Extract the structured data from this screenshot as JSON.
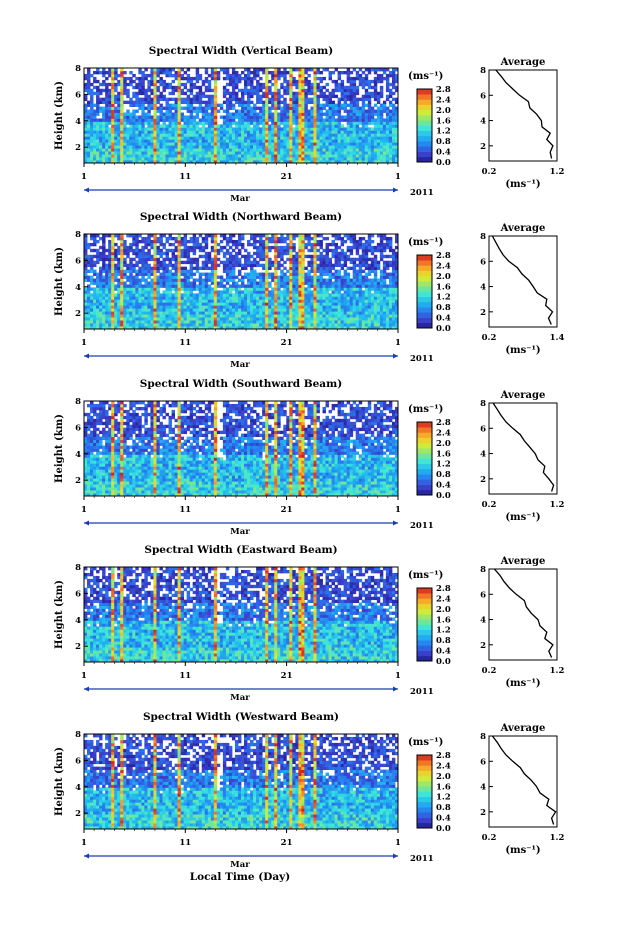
{
  "figure": {
    "time_axis_label": "Local Time (Day)",
    "month_label": "Mar",
    "year_label": "2011",
    "colorbar_unit": "(ms⁻¹)",
    "profile_title": "Average",
    "profile_unit": "(ms⁻¹)"
  },
  "chart_data": [
    {
      "type": "heatmap",
      "title": "Spectral Width (Vertical Beam)",
      "ylabel": "Height (km)",
      "xlabel": "",
      "x_ticks": [
        "1",
        "11",
        "21",
        "1"
      ],
      "y_ticks": [
        "2",
        "4",
        "6",
        "8"
      ],
      "xlim": [
        1,
        32
      ],
      "ylim": [
        0.8,
        8.0
      ],
      "colorbar": {
        "range": [
          0.0,
          2.8
        ],
        "ticks": [
          "0.0",
          "0.4",
          "0.8",
          "1.2",
          "1.6",
          "2.0",
          "2.4",
          "2.8"
        ]
      },
      "profile": {
        "title": "Average",
        "x_ticks": [
          "0.2",
          "1.2"
        ],
        "xlim": [
          0.2,
          1.2
        ],
        "y_ticks": [
          "2",
          "4",
          "6",
          "8"
        ],
        "ylim": [
          0.8,
          8.0
        ],
        "points": [
          [
            1.12,
            1.0
          ],
          [
            1.1,
            1.5
          ],
          [
            1.14,
            2.0
          ],
          [
            1.05,
            2.5
          ],
          [
            1.1,
            3.0
          ],
          [
            0.98,
            3.5
          ],
          [
            0.97,
            4.0
          ],
          [
            0.9,
            4.5
          ],
          [
            0.8,
            5.0
          ],
          [
            0.78,
            5.5
          ],
          [
            0.65,
            6.0
          ],
          [
            0.55,
            6.5
          ],
          [
            0.45,
            7.0
          ],
          [
            0.38,
            7.5
          ],
          [
            0.3,
            8.0
          ]
        ]
      }
    },
    {
      "type": "heatmap",
      "title": "Spectral Width (Northward Beam)",
      "ylabel": "Height (km)",
      "xlabel": "",
      "x_ticks": [
        "1",
        "11",
        "21",
        "1"
      ],
      "y_ticks": [
        "2",
        "4",
        "6",
        "8"
      ],
      "xlim": [
        1,
        32
      ],
      "ylim": [
        0.8,
        8.0
      ],
      "colorbar": {
        "range": [
          0.0,
          2.8
        ],
        "ticks": [
          "0.0",
          "0.4",
          "0.8",
          "1.2",
          "1.6",
          "2.0",
          "2.4",
          "2.8"
        ]
      },
      "profile": {
        "title": "Average",
        "x_ticks": [
          "0.2",
          "1.4"
        ],
        "xlim": [
          0.2,
          1.4
        ],
        "y_ticks": [
          "2",
          "4",
          "6",
          "8"
        ],
        "ylim": [
          0.8,
          8.0
        ],
        "points": [
          [
            1.3,
            1.0
          ],
          [
            1.25,
            1.5
          ],
          [
            1.32,
            2.0
          ],
          [
            1.2,
            2.5
          ],
          [
            1.22,
            3.0
          ],
          [
            1.05,
            3.5
          ],
          [
            0.98,
            4.0
          ],
          [
            0.9,
            4.5
          ],
          [
            0.78,
            5.0
          ],
          [
            0.7,
            5.5
          ],
          [
            0.55,
            6.0
          ],
          [
            0.45,
            6.5
          ],
          [
            0.38,
            7.0
          ],
          [
            0.32,
            7.5
          ],
          [
            0.26,
            8.0
          ]
        ]
      }
    },
    {
      "type": "heatmap",
      "title": "Spectral Width (Southward Beam)",
      "ylabel": "Height (km)",
      "xlabel": "",
      "x_ticks": [
        "1",
        "11",
        "21",
        "1"
      ],
      "y_ticks": [
        "2",
        "4",
        "6",
        "8"
      ],
      "xlim": [
        1,
        32
      ],
      "ylim": [
        0.8,
        8.0
      ],
      "colorbar": {
        "range": [
          0.0,
          2.8
        ],
        "ticks": [
          "0.0",
          "0.4",
          "0.8",
          "1.2",
          "1.6",
          "2.0",
          "2.4",
          "2.8"
        ]
      },
      "profile": {
        "title": "Average",
        "x_ticks": [
          "0.2",
          "1.2"
        ],
        "xlim": [
          0.2,
          1.2
        ],
        "y_ticks": [
          "2",
          "4",
          "6",
          "8"
        ],
        "ylim": [
          0.8,
          8.0
        ],
        "points": [
          [
            1.12,
            1.0
          ],
          [
            1.15,
            1.5
          ],
          [
            1.08,
            2.0
          ],
          [
            1.0,
            2.5
          ],
          [
            1.02,
            3.0
          ],
          [
            0.92,
            3.5
          ],
          [
            0.88,
            4.0
          ],
          [
            0.8,
            4.5
          ],
          [
            0.72,
            5.0
          ],
          [
            0.66,
            5.5
          ],
          [
            0.55,
            6.0
          ],
          [
            0.45,
            6.5
          ],
          [
            0.38,
            7.0
          ],
          [
            0.32,
            7.5
          ],
          [
            0.26,
            8.0
          ]
        ]
      }
    },
    {
      "type": "heatmap",
      "title": "Spectral Width (Eastward Beam)",
      "ylabel": "Height (km)",
      "xlabel": "",
      "x_ticks": [
        "1",
        "11",
        "21",
        "1"
      ],
      "y_ticks": [
        "2",
        "4",
        "6",
        "8"
      ],
      "xlim": [
        1,
        32
      ],
      "ylim": [
        0.8,
        8.0
      ],
      "colorbar": {
        "range": [
          0.0,
          2.8
        ],
        "ticks": [
          "0.0",
          "0.4",
          "0.8",
          "1.2",
          "1.6",
          "2.0",
          "2.4",
          "2.8"
        ]
      },
      "profile": {
        "title": "Average",
        "x_ticks": [
          "0.2",
          "1.2"
        ],
        "xlim": [
          0.2,
          1.2
        ],
        "y_ticks": [
          "2",
          "4",
          "6",
          "8"
        ],
        "ylim": [
          0.8,
          8.0
        ],
        "points": [
          [
            1.12,
            1.0
          ],
          [
            1.08,
            1.5
          ],
          [
            1.14,
            2.0
          ],
          [
            1.02,
            2.5
          ],
          [
            1.05,
            3.0
          ],
          [
            0.95,
            3.5
          ],
          [
            0.92,
            4.0
          ],
          [
            0.82,
            4.5
          ],
          [
            0.75,
            5.0
          ],
          [
            0.72,
            5.5
          ],
          [
            0.6,
            6.0
          ],
          [
            0.5,
            6.5
          ],
          [
            0.42,
            7.0
          ],
          [
            0.36,
            7.5
          ],
          [
            0.28,
            8.0
          ]
        ]
      }
    },
    {
      "type": "heatmap",
      "title": "Spectral Width (Westward Beam)",
      "ylabel": "Height (km)",
      "xlabel": "Local Time (Day)",
      "x_ticks": [
        "1",
        "11",
        "21",
        "1"
      ],
      "y_ticks": [
        "2",
        "4",
        "6",
        "8"
      ],
      "xlim": [
        1,
        32
      ],
      "ylim": [
        0.8,
        8.0
      ],
      "colorbar": {
        "range": [
          0.0,
          2.8
        ],
        "ticks": [
          "0.0",
          "0.4",
          "0.8",
          "1.2",
          "1.6",
          "2.0",
          "2.4",
          "2.8"
        ]
      },
      "profile": {
        "title": "Average",
        "x_ticks": [
          "0.2",
          "1.2"
        ],
        "xlim": [
          0.2,
          1.2
        ],
        "y_ticks": [
          "2",
          "4",
          "6",
          "8"
        ],
        "ylim": [
          0.8,
          8.0
        ],
        "points": [
          [
            1.15,
            1.0
          ],
          [
            1.12,
            1.5
          ],
          [
            1.18,
            2.0
          ],
          [
            1.05,
            2.5
          ],
          [
            1.08,
            3.0
          ],
          [
            0.95,
            3.5
          ],
          [
            0.9,
            4.0
          ],
          [
            0.82,
            4.5
          ],
          [
            0.72,
            5.0
          ],
          [
            0.66,
            5.5
          ],
          [
            0.55,
            6.0
          ],
          [
            0.45,
            6.5
          ],
          [
            0.38,
            7.0
          ],
          [
            0.32,
            7.5
          ],
          [
            0.25,
            8.0
          ]
        ]
      }
    }
  ]
}
